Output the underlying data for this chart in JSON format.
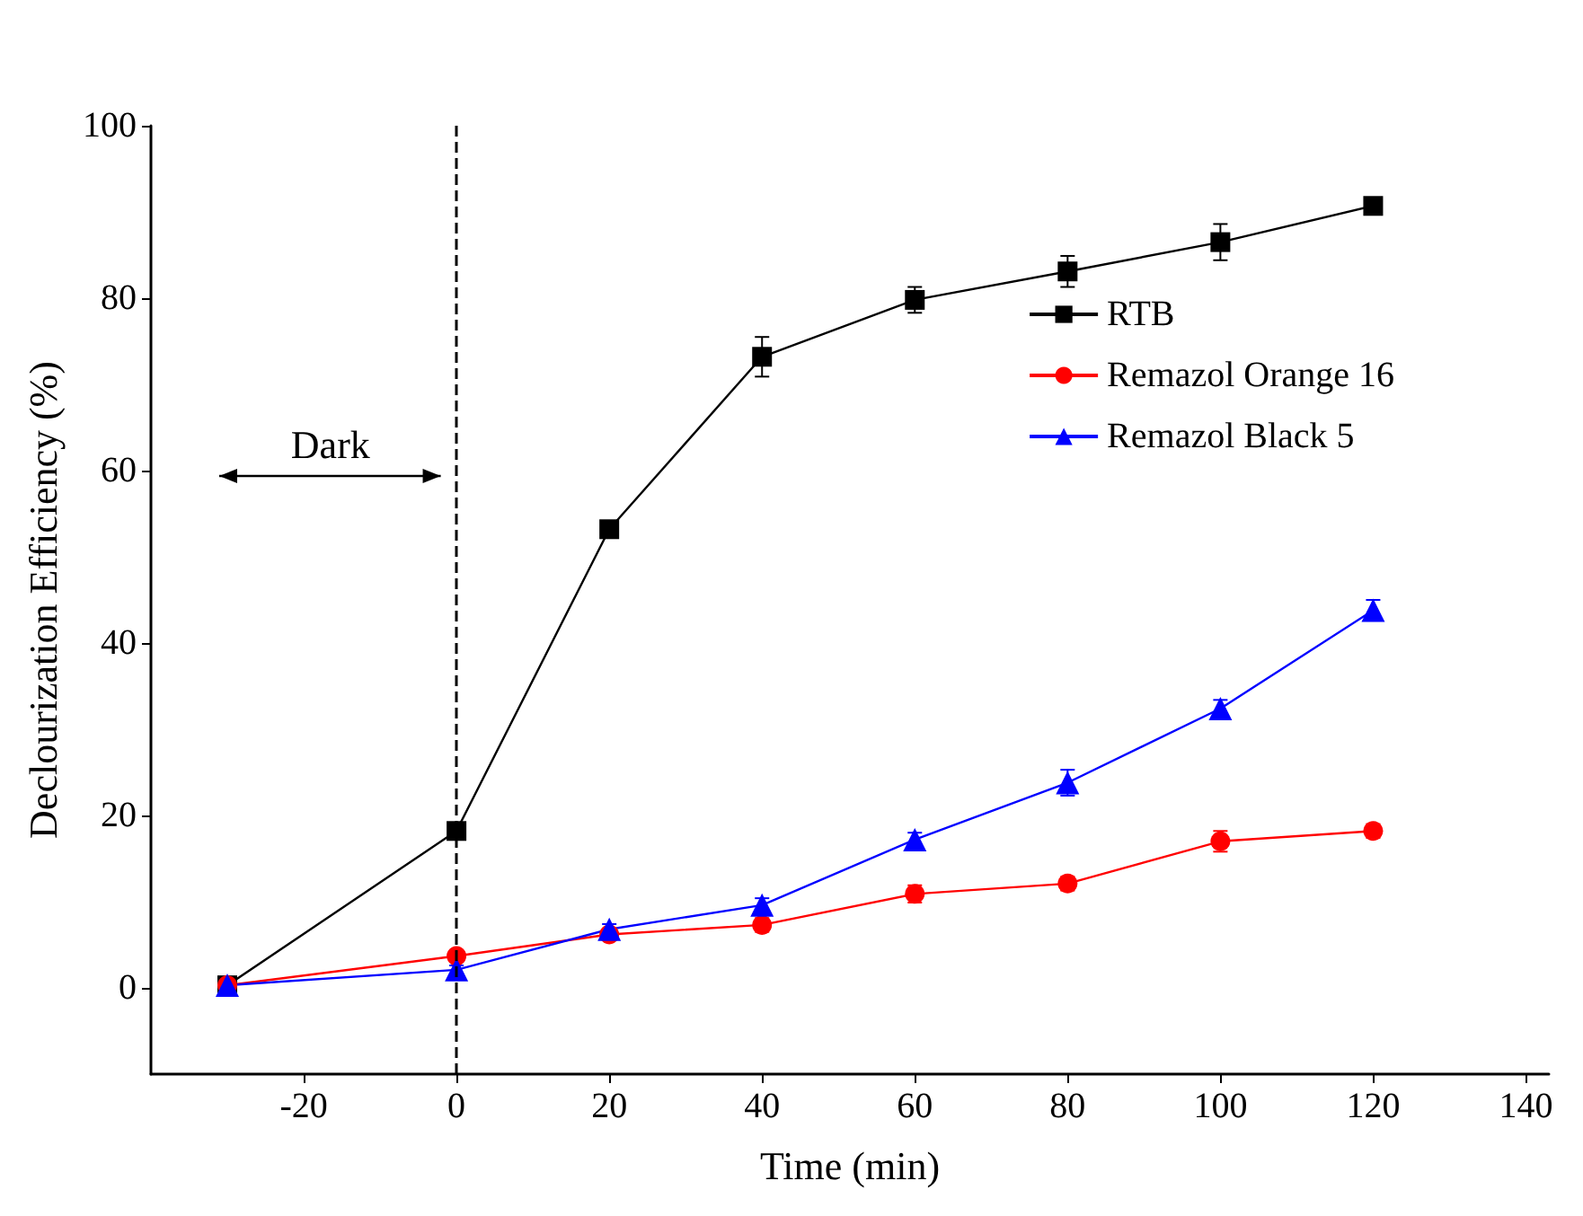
{
  "chart_data": {
    "type": "line",
    "xlabel": "Time (min)",
    "ylabel": "Declourization Efficiency (%)",
    "x": [
      -30,
      0,
      20,
      40,
      60,
      80,
      100,
      120
    ],
    "series": [
      {
        "name": "RTB",
        "color": "#000000",
        "marker": "square",
        "values": [
          0.3,
          18.2,
          53.2,
          73.2,
          79.8,
          83.1,
          86.5,
          90.7
        ],
        "errors": [
          null,
          0.6,
          0.6,
          2.3,
          1.5,
          1.8,
          2.1,
          0.8
        ]
      },
      {
        "name": "Remazol Orange 16",
        "color": "#ff0000",
        "marker": "circle",
        "values": [
          0.3,
          3.7,
          6.2,
          7.3,
          10.9,
          12.1,
          17.0,
          18.2
        ],
        "errors": [
          null,
          0.5,
          0.6,
          0.8,
          1.0,
          0.8,
          1.2,
          0.8
        ]
      },
      {
        "name": "Remazol Black 5",
        "color": "#0000ff",
        "marker": "triangle",
        "values": [
          0.3,
          2.1,
          6.8,
          9.6,
          17.2,
          23.8,
          32.4,
          43.8
        ],
        "errors": [
          null,
          0.5,
          0.6,
          0.8,
          0.8,
          1.5,
          1.0,
          1.2
        ]
      }
    ],
    "xlim": [
      -40,
      143
    ],
    "xticks": [
      -20,
      0,
      20,
      40,
      60,
      80,
      100,
      120,
      140
    ],
    "ylim": [
      -10,
      100
    ],
    "yticks": [
      0,
      20,
      40,
      60,
      80,
      100
    ],
    "ref_lines": [
      {
        "axis": "x",
        "value": 0,
        "line_style": "dashed",
        "color": "#000000"
      }
    ],
    "annotations": [
      "Dark"
    ],
    "legend": "top right",
    "grid": false,
    "line_style": "solid"
  }
}
